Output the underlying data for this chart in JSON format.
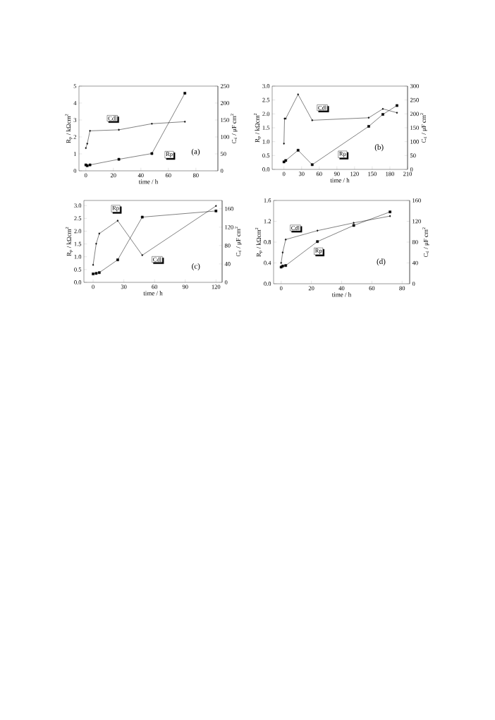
{
  "chart_data": [
    {
      "type": "line",
      "xlabel": "time / h",
      "ylabel": "R$_{p}$ / kΩcm$^{2}$",
      "y2label": "C$_{d}$ / μF cm$^{2}$",
      "annotations": [
        "(a)"
      ],
      "xlim": [
        -5,
        96
      ],
      "xticks": [
        0,
        20,
        40,
        60,
        80
      ],
      "ylim": [
        0,
        5
      ],
      "yticks": [
        0,
        1,
        2,
        3,
        4,
        5
      ],
      "y2lim": [
        0,
        250
      ],
      "y2ticks": [
        0,
        50,
        100,
        150,
        200,
        250
      ],
      "series": [
        {
          "name": "Rp",
          "color": "#000000",
          "marker": "square",
          "x": [
            0,
            1,
            3,
            24,
            48,
            72
          ],
          "values": [
            0.35,
            0.3,
            0.35,
            0.68,
            1.02,
            4.58
          ]
        },
        {
          "name": "Cdl",
          "color": "#000000",
          "marker": "diamond",
          "axis": "y2",
          "x": [
            0,
            1,
            3,
            24,
            48,
            72
          ],
          "values": [
            67,
            80,
            118,
            121,
            139,
            145
          ]
        }
      ]
    },
    {
      "type": "line",
      "xlabel": "time / h",
      "ylabel": "R$_{p}$ / kΩcm$^{2}$",
      "y2label": "C$_{d}$ / μF cm$^{2}$",
      "annotations": [
        "(b)"
      ],
      "xlim": [
        -20,
        210
      ],
      "xticks": [
        0,
        30,
        60,
        90,
        120,
        150,
        180,
        210
      ],
      "ylim": [
        0,
        3
      ],
      "yticks": [
        {
          "value": 0,
          "label": "0.0"
        },
        0.5,
        {
          "value": 1,
          "label": "1.0"
        },
        1.5,
        {
          "value": 2,
          "label": "2.0"
        },
        2.5,
        {
          "value": 3,
          "label": "3.0"
        }
      ],
      "y2lim": [
        0,
        300
      ],
      "y2ticks": [
        0,
        50,
        100,
        150,
        200,
        250,
        300
      ],
      "series": [
        {
          "name": "Rp",
          "color": "#000000",
          "marker": "square",
          "x": [
            0,
            3,
            24,
            48,
            144,
            168,
            192
          ],
          "values": [
            0.27,
            0.32,
            0.69,
            0.17,
            1.55,
            1.98,
            2.3
          ]
        },
        {
          "name": "Cdl",
          "color": "#000000",
          "marker": "diamond",
          "axis": "y2",
          "x": [
            0,
            1,
            3,
            24,
            48,
            144,
            168,
            192
          ],
          "values": [
            93,
            183,
            183,
            270,
            177,
            186,
            218,
            204
          ]
        }
      ]
    },
    {
      "type": "line",
      "xlabel": "time / h",
      "ylabel": "R$_{p}$ / kΩcm$^{2}$",
      "y2label": "C$_{d}$ / μF cm$^{2}$",
      "annotations": [
        "(c)"
      ],
      "xlim": [
        -9,
        126
      ],
      "xticks": [
        0,
        30,
        60,
        90,
        120
      ],
      "ylim": [
        0,
        3.2
      ],
      "yticks": [
        {
          "value": 0,
          "label": "0.0"
        },
        0.5,
        {
          "value": 1,
          "label": "1.0"
        },
        1.5,
        {
          "value": 2,
          "label": "2.0"
        },
        2.5,
        {
          "value": 3,
          "label": "3.0"
        }
      ],
      "y2lim": [
        0,
        178
      ],
      "y2ticks": [
        0,
        40,
        80,
        120,
        160
      ],
      "series": [
        {
          "name": "Rp",
          "color": "#000000",
          "marker": "square",
          "x": [
            0,
            3,
            6,
            24,
            48,
            120
          ],
          "values": [
            0.33,
            0.35,
            0.38,
            0.88,
            2.55,
            2.79
          ]
        },
        {
          "name": "Cdl",
          "color": "#000000",
          "marker": "diamond",
          "axis": "y2",
          "x": [
            0,
            3,
            6,
            24,
            48,
            120
          ],
          "values": [
            38,
            84,
            106,
            134,
            59,
            166
          ]
        }
      ]
    },
    {
      "type": "line",
      "xlabel": "time / h",
      "ylabel": "R$_{p}$ / kΩcm$^{2}$",
      "y2label": "C$_{d}$ / μF cm$^{2}$",
      "annotations": [
        "(d)"
      ],
      "xlim": [
        -5,
        85
      ],
      "xticks": [
        0,
        20,
        40,
        60,
        80
      ],
      "ylim": [
        0,
        1.6
      ],
      "yticks": [
        {
          "value": 0,
          "label": "0.0"
        },
        0.4,
        0.8,
        1.2,
        1.6
      ],
      "y2lim": [
        0,
        160
      ],
      "y2ticks": [
        0,
        40,
        80,
        120,
        160
      ],
      "series": [
        {
          "name": "Rp",
          "color": "#000000",
          "marker": "square",
          "x": [
            0,
            1,
            3,
            24,
            48,
            72
          ],
          "values": [
            0.32,
            0.34,
            0.35,
            0.81,
            1.12,
            1.38
          ]
        },
        {
          "name": "Cdl",
          "color": "#000000",
          "marker": "diamond",
          "axis": "y2",
          "x": [
            0,
            1,
            3,
            24,
            48,
            72
          ],
          "values": [
            40,
            60,
            85,
            102,
            117,
            130
          ]
        }
      ]
    }
  ]
}
